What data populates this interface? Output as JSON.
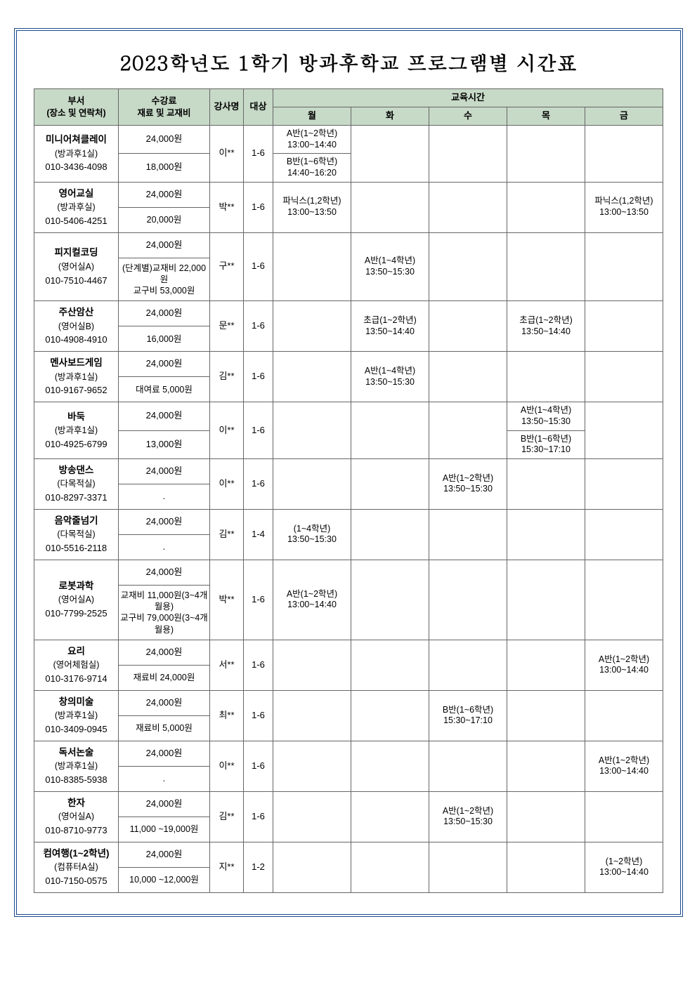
{
  "title": "2023학년도 1학기 방과후학교 프로그램별 시간표",
  "headers": {
    "dept": "부서",
    "dept_sub": "(장소 및 연락처)",
    "fee": "수강료",
    "fee_sub": "재료 및 교재비",
    "instructor": "강사명",
    "target": "대상",
    "time": "교육시간",
    "mon": "월",
    "tue": "화",
    "wed": "수",
    "thu": "목",
    "fri": "금"
  },
  "rows": [
    {
      "name": "미니어쳐클레이",
      "place": "(방과후1실)",
      "phone": "010-3436-4098",
      "fee1": "24,000원",
      "fee2": "18,000원",
      "instructor": "이**",
      "target": "1-6",
      "mon1": "A반(1~2학년)\n13:00~14:40",
      "mon2": "B반(1~6학년)\n14:40~16:20",
      "tue": "",
      "wed": "",
      "thu": "",
      "fri": ""
    },
    {
      "name": "영어교실",
      "place": "(방과후실)",
      "phone": "010-5406-4251",
      "fee1": "24,000원",
      "fee2": "20,000원",
      "instructor": "박**",
      "target": "1-6",
      "mon": "파닉스(1,2학년)\n13:00~13:50",
      "tue": "",
      "wed": "",
      "thu": "",
      "fri": "파닉스(1,2학년)\n13:00~13:50"
    },
    {
      "name": "피지컬코딩",
      "place": "(영어실A)",
      "phone": "010-7510-4467",
      "fee1": "24,000원",
      "fee2": "(단계별)교재비 22,000원\n교구비 53,000원",
      "instructor": "구**",
      "target": "1-6",
      "mon": "",
      "tue": "A반(1~4학년)\n13:50~15:30",
      "wed": "",
      "thu": "",
      "fri": ""
    },
    {
      "name": "주산암산",
      "place": "(영어실B)",
      "phone": "010-4908-4910",
      "fee1": "24,000원",
      "fee2": "16,000원",
      "instructor": "문**",
      "target": "1-6",
      "mon": "",
      "tue": "초급(1~2학년)\n13:50~14:40",
      "wed": "",
      "thu": "초급(1~2학년)\n13:50~14:40",
      "fri": ""
    },
    {
      "name": "멘사보드게임",
      "place": "(방과후1실)",
      "phone": "010-9167-9652",
      "fee1": "24,000원",
      "fee2": "대여료 5,000원",
      "instructor": "김**",
      "target": "1-6",
      "mon": "",
      "tue": "A반(1~4학년)\n13:50~15:30",
      "wed": "",
      "thu": "",
      "fri": ""
    },
    {
      "name": "바둑",
      "place": "(방과후1실)",
      "phone": "010-4925-6799",
      "fee1": "24,000원",
      "fee2": "13,000원",
      "instructor": "이**",
      "target": "1-6",
      "mon": "",
      "tue": "",
      "wed": "",
      "thu1": "A반(1~4학년)\n13:50~15:30",
      "thu2": "B반(1~6학년)\n15:30~17:10",
      "fri": ""
    },
    {
      "name": "방송댄스",
      "place": "(다목적실)",
      "phone": "010-8297-3371",
      "fee1": "24,000원",
      "fee2": ".",
      "instructor": "이**",
      "target": "1-6",
      "mon": "",
      "tue": "",
      "wed": "A반(1~2학년)\n13:50~15:30",
      "thu": "",
      "fri": ""
    },
    {
      "name": "음악줄넘기",
      "place": "(다목적실)",
      "phone": "010-5516-2118",
      "fee1": "24,000원",
      "fee2": ".",
      "instructor": "김**",
      "target": "1-4",
      "mon": "(1~4학년)\n13:50~15:30",
      "tue": "",
      "wed": "",
      "thu": "",
      "fri": ""
    },
    {
      "name": "로봇과학",
      "place": "(영어실A)",
      "phone": "010-7799-2525",
      "fee1": "24,000원",
      "fee2": "교재비 11,000원(3~4개월용)\n교구비 79,000원(3~4개월용)",
      "instructor": "박**",
      "target": "1-6",
      "mon": "A반(1~2학년)\n13:00~14:40",
      "tue": "",
      "wed": "",
      "thu": "",
      "fri": ""
    },
    {
      "name": "요리",
      "place": "(영어체험실)",
      "phone": "010-3176-9714",
      "fee1": "24,000원",
      "fee2": "재료비 24,000원",
      "instructor": "서**",
      "target": "1-6",
      "mon": "",
      "tue": "",
      "wed": "",
      "thu": "",
      "fri": "A반(1~2학년)\n13:00~14:40"
    },
    {
      "name": "창의미술",
      "place": "(방과후1실)",
      "phone": "010-3409-0945",
      "fee1": "24,000원",
      "fee2": "재료비 5,000원",
      "instructor": "최**",
      "target": "1-6",
      "mon": "",
      "tue": "",
      "wed": "B반(1~6학년)\n15:30~17:10",
      "thu": "",
      "fri": ""
    },
    {
      "name": "독서논술",
      "place": "(방과후1실)",
      "phone": "010-8385-5938",
      "fee1": "24,000원",
      "fee2": ".",
      "instructor": "이**",
      "target": "1-6",
      "mon": "",
      "tue": "",
      "wed": "",
      "thu": "",
      "fri": "A반(1~2학년)\n13:00~14:40"
    },
    {
      "name": "한자",
      "place": "(영어실A)",
      "phone": "010-8710-9773",
      "fee1": "24,000원",
      "fee2": "11,000 ~19,000원",
      "instructor": "김**",
      "target": "1-6",
      "mon": "",
      "tue": "",
      "wed": "A반(1~2학년)\n13:50~15:30",
      "thu": "",
      "fri": ""
    },
    {
      "name": "컴여행(1~2학년)",
      "place": "(컴퓨터A실)",
      "phone": "010-7150-0575",
      "fee1": "24,000원",
      "fee2": "10,000 ~12,000원",
      "instructor": "지**",
      "target": "1-2",
      "mon": "",
      "tue": "",
      "wed": "",
      "thu": "",
      "fri": "(1~2학년)\n13:00~14:40"
    }
  ],
  "colors": {
    "border_outer": "#1a4a8a",
    "header_bg": "#c7d9c7",
    "cell_border": "#666666"
  }
}
